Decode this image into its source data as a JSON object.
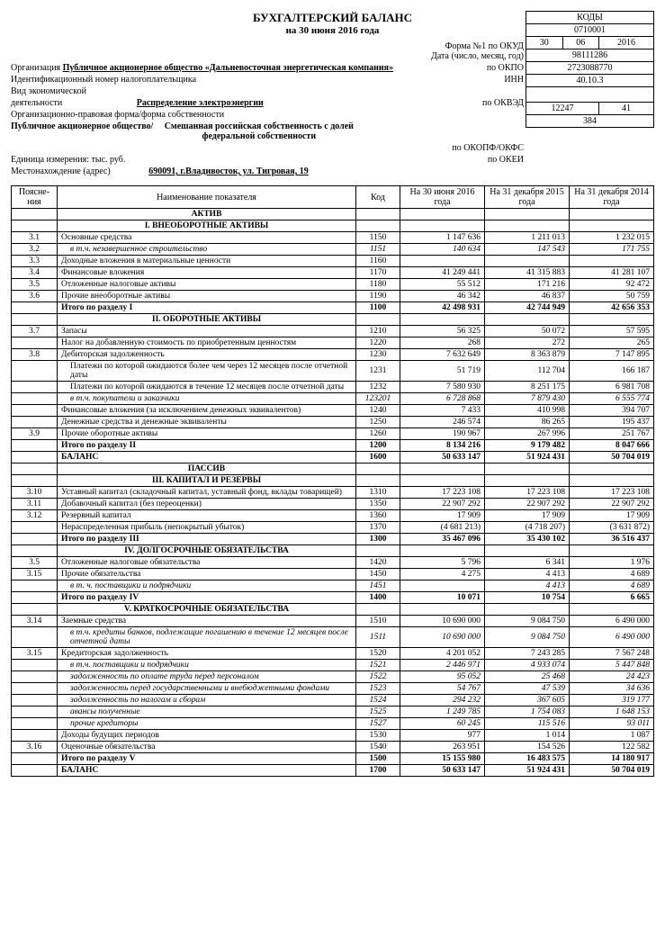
{
  "title": "БУХГАЛТЕРСКИЙ БАЛАНС",
  "subtitle": "на 30 июня 2016 года",
  "form_label": "Форма №1 по ОКУД",
  "codes_header": "КОДЫ",
  "okud": "0710001",
  "date_label": "Дата (число, месяц, год)",
  "date_d": "30",
  "date_m": "06",
  "date_y": "2016",
  "org_label": "Организация",
  "org_val": "Публичное акционерное общество «Дальневосточная энергетическая компания»",
  "okpo_label": "по ОКПО",
  "okpo": "98111286",
  "inn_label": "Идентификационный номер налогоплательщика",
  "inn_r": "ИНН",
  "inn": "2723088770",
  "act_label": "Вид экономической",
  "act_label2": "деятельности",
  "act_val": "Распределение электроэнергии",
  "okved_label": "по ОКВЭД",
  "okved": "40.10.3",
  "form_org_label": "Организационно-правовая форма/форма собственности",
  "form_org_val": "Публичное акционерное общество/",
  "own_val": "Смешанная российская собственность с долей федеральной собственности",
  "okopf_label": "по ОКОПФ/ОКФС",
  "okopf1": "12247",
  "okopf2": "41",
  "unit_label": "Единица измерения: тыс. руб.",
  "okei_label": "по ОКЕИ",
  "okei": "384",
  "addr_label": "Местонахождение (адрес)",
  "addr_val": "690091, г.Владивосток, ул. Тигровая, 19",
  "th_note": "Поясне-\nния",
  "th_name": "Наименование показателя",
  "th_code": "Код",
  "th_c1": "На 30 июня 2016 года",
  "th_c2": "На 31 декабря 2015 года",
  "th_c3": "На 31 декабря 2014 года",
  "rows": [
    {
      "section": "АКТИВ"
    },
    {
      "section": "I. ВНЕОБОРОТНЫЕ АКТИВЫ"
    },
    {
      "n": "3.1",
      "name": "Основные средства",
      "code": "1150",
      "v1": "1 147 636",
      "v2": "1 211 013",
      "v3": "1 232 015"
    },
    {
      "n": "3.2",
      "name": "в т.ч. незавершенное строительство",
      "code": "1151",
      "v1": "140 634",
      "v2": "147 543",
      "v3": "171 755",
      "it": 1,
      "ind": 1
    },
    {
      "n": "3.3",
      "name": "Доходные вложения в материальные ценности",
      "code": "1160",
      "v1": "",
      "v2": "",
      "v3": ""
    },
    {
      "n": "3.4",
      "name": "Финансовые вложения",
      "code": "1170",
      "v1": "41 249 441",
      "v2": "41 315 883",
      "v3": "41 281 107"
    },
    {
      "n": "3.5",
      "name": "Отложенные налоговые активы",
      "code": "1180",
      "v1": "55 512",
      "v2": "171 216",
      "v3": "92 472"
    },
    {
      "n": "3.6",
      "name": "Прочие внеоборотные активы",
      "code": "1190",
      "v1": "46 342",
      "v2": "46 837",
      "v3": "50 759"
    },
    {
      "name": "Итого по разделу I",
      "code": "1100",
      "v1": "42 498 931",
      "v2": "42 744 949",
      "v3": "42 656 353",
      "b": 1
    },
    {
      "section": "II. ОБОРОТНЫЕ АКТИВЫ"
    },
    {
      "n": "3.7",
      "name": "Запасы",
      "code": "1210",
      "v1": "56 325",
      "v2": "50 072",
      "v3": "57 595"
    },
    {
      "name": "Налог на добавленную стоимость по приобретенным ценностям",
      "code": "1220",
      "v1": "268",
      "v2": "272",
      "v3": "265"
    },
    {
      "n": "3.8",
      "name": "Дебиторская задолженность",
      "code": "1230",
      "v1": "7 632 649",
      "v2": "8 363 879",
      "v3": "7 147 895"
    },
    {
      "name": "Платежи по которой ожидаются более чем через 12 месяцев после отчетной даты",
      "code": "1231",
      "v1": "51 719",
      "v2": "112 704",
      "v3": "166 187",
      "ind": 1
    },
    {
      "name": "Платежи по которой ожидаются в течение 12 месяцев после отчетной даты",
      "code": "1232",
      "v1": "7 580 930",
      "v2": "8 251 175",
      "v3": "6 981 708",
      "ind": 1
    },
    {
      "name": "в т.ч. покупатели и заказчики",
      "code": "123201",
      "v1": "6 728 868",
      "v2": "7 879 430",
      "v3": "6 555 774",
      "it": 1,
      "ind": 1
    },
    {
      "name": "Финансовые вложения (за исключением денежных эквивалентов)",
      "code": "1240",
      "v1": "7 433",
      "v2": "410 998",
      "v3": "394 707"
    },
    {
      "name": "Денежные средства и денежные эквиваленты",
      "code": "1250",
      "v1": "246 574",
      "v2": "86 265",
      "v3": "195 437"
    },
    {
      "n": "3.9",
      "name": "Прочие оборотные активы",
      "code": "1260",
      "v1": "190 967",
      "v2": "267 996",
      "v3": "251 767"
    },
    {
      "name": "Итого по разделу II",
      "code": "1200",
      "v1": "8 134 216",
      "v2": "9 179 482",
      "v3": "8 047 666",
      "b": 1
    },
    {
      "name": "БАЛАНС",
      "code": "1600",
      "v1": "50 633 147",
      "v2": "51 924 431",
      "v3": "50 704 019",
      "b": 1
    },
    {
      "section": "ПАССИВ"
    },
    {
      "section": "III. КАПИТАЛ И РЕЗЕРВЫ"
    },
    {
      "n": "3.10",
      "name": "Уставный капитал (складочный капитал, уставный фонд, вклады товарищей)",
      "code": "1310",
      "v1": "17 223 108",
      "v2": "17 223 108",
      "v3": "17 223 108"
    },
    {
      "n": "3.11",
      "name": "Добавочный капитал (без переоценки)",
      "code": "1350",
      "v1": "22 907 292",
      "v2": "22 907 292",
      "v3": "22 907 292"
    },
    {
      "n": "3.12",
      "name": "Резервный капитал",
      "code": "1360",
      "v1": "17 909",
      "v2": "17 909",
      "v3": "17 909"
    },
    {
      "name": "Нераспределенная прибыль (непокрытый убыток)",
      "code": "1370",
      "v1": "(4 681 213)",
      "v2": "(4 718 207)",
      "v3": "(3 631 872)"
    },
    {
      "name": "Итого по разделу III",
      "code": "1300",
      "v1": "35 467 096",
      "v2": "35 430 102",
      "v3": "36 516 437",
      "b": 1
    },
    {
      "section": "IV. ДОЛГОСРОЧНЫЕ ОБЯЗАТЕЛЬСТВА"
    },
    {
      "n": "3.5",
      "name": "Отложенные налоговые обязательства",
      "code": "1420",
      "v1": "5 796",
      "v2": "6 341",
      "v3": "1 976"
    },
    {
      "n": "3.15",
      "name": "Прочие обязательства",
      "code": "1450",
      "v1": "4 275",
      "v2": "4 413",
      "v3": "4 689"
    },
    {
      "name": "в т. ч. поставщики и подрядчики",
      "code": "1451",
      "v1": "",
      "v2": "4 413",
      "v3": "4 689",
      "it": 1,
      "ind": 1
    },
    {
      "name": "Итого по разделу IV",
      "code": "1400",
      "v1": "10 071",
      "v2": "10 754",
      "v3": "6 665",
      "b": 1
    },
    {
      "section": "V. КРАТКОСРОЧНЫЕ ОБЯЗАТЕЛЬСТВА"
    },
    {
      "n": "3.14",
      "name": "Заемные средства",
      "code": "1510",
      "v1": "10 690 000",
      "v2": "9 084 750",
      "v3": "6 490 000"
    },
    {
      "name": "в т.ч. кредиты банков, подлежащие погашению в течение 12 месяцев после отчетной даты",
      "code": "1511",
      "v1": "10 690 000",
      "v2": "9 084 750",
      "v3": "6 490 000",
      "it": 1,
      "ind": 1
    },
    {
      "n": "3.15",
      "name": "Кредиторская задолженность",
      "code": "1520",
      "v1": "4 201 052",
      "v2": "7 243 285",
      "v3": "7 567 248"
    },
    {
      "name": "в т.ч. поставщики и подрядчики",
      "code": "1521",
      "v1": "2 446 971",
      "v2": "4 933 074",
      "v3": "5 447 848",
      "it": 1,
      "ind": 1
    },
    {
      "name": "задолженность по оплате труда перед персоналом",
      "code": "1522",
      "v1": "95 052",
      "v2": "25 468",
      "v3": "24 423",
      "it": 1,
      "ind": 1
    },
    {
      "name": "задолженность перед государственными и внебюджетными фондами",
      "code": "1523",
      "v1": "54 767",
      "v2": "47 539",
      "v3": "34 636",
      "it": 1,
      "ind": 1
    },
    {
      "name": "задолженность по налогам и сборам",
      "code": "1524",
      "v1": "294 232",
      "v2": "367 605",
      "v3": "319 177",
      "it": 1,
      "ind": 1
    },
    {
      "name": "авансы полученные",
      "code": "1525",
      "v1": "1 249 785",
      "v2": "1 754 083",
      "v3": "1 648 153",
      "it": 1,
      "ind": 1
    },
    {
      "name": "прочие кредиторы",
      "code": "1527",
      "v1": "60 245",
      "v2": "115 516",
      "v3": "93 011",
      "it": 1,
      "ind": 1
    },
    {
      "name": "Доходы будущих периодов",
      "code": "1530",
      "v1": "977",
      "v2": "1 014",
      "v3": "1 087"
    },
    {
      "n": "3.16",
      "name": "Оценочные обязательства",
      "code": "1540",
      "v1": "263 951",
      "v2": "154 526",
      "v3": "122 582"
    },
    {
      "name": "Итого по разделу V",
      "code": "1500",
      "v1": "15 155 980",
      "v2": "16 483 575",
      "v3": "14 180 917",
      "b": 1
    },
    {
      "name": "БАЛАНС",
      "code": "1700",
      "v1": "50 633 147",
      "v2": "51 924 431",
      "v3": "50 704 019",
      "b": 1
    }
  ]
}
